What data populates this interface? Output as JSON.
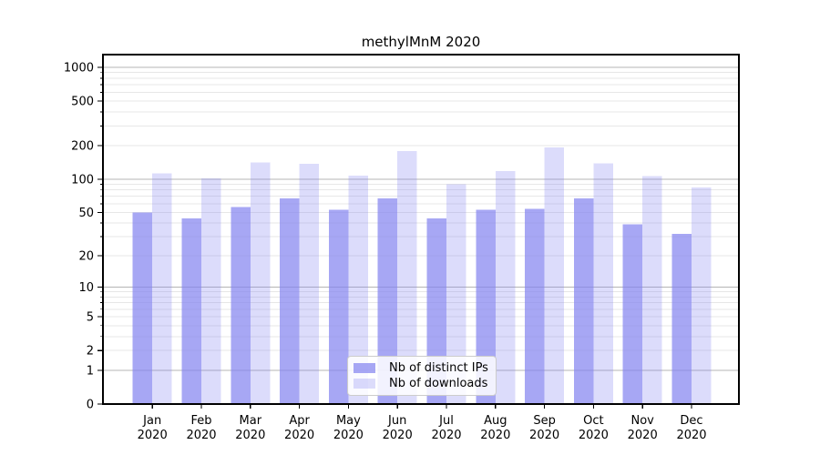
{
  "title": "methylMnM 2020",
  "legend": {
    "items": [
      {
        "label": "Nb of distinct IPs",
        "color": "rgba(130,130,240,0.7)"
      },
      {
        "label": "Nb of downloads",
        "color": "rgba(130,130,240,0.28)"
      }
    ]
  },
  "colors": {
    "bar_base": "#8282f0",
    "grid_major": "#b4b4b4",
    "grid_minor": "#e7e7e7",
    "axis": "#000000",
    "background": "#ffffff"
  },
  "chart_data": {
    "type": "bar",
    "title": "methylMnM 2020",
    "categories": [
      "Jan 2020",
      "Feb 2020",
      "Mar 2020",
      "Apr 2020",
      "May 2020",
      "Jun 2020",
      "Jul 2020",
      "Aug 2020",
      "Sep 2020",
      "Oct 2020",
      "Nov 2020",
      "Dec 2020"
    ],
    "series": [
      {
        "name": "Nb of distinct IPs",
        "values": [
          50,
          44,
          56,
          67,
          53,
          67,
          44,
          53,
          54,
          67,
          39,
          32
        ],
        "color": "rgba(130,130,240,0.7)"
      },
      {
        "name": "Nb of downloads",
        "values": [
          113,
          102,
          141,
          138,
          108,
          179,
          90,
          118,
          193,
          139,
          107,
          84
        ],
        "color": "rgba(130,130,240,0.28)"
      }
    ],
    "xlabel": "",
    "ylabel": "",
    "yscale": "log1p",
    "ylim": [
      0,
      1300
    ],
    "yticks": [
      0,
      1,
      2,
      5,
      10,
      20,
      50,
      100,
      200,
      500,
      1000
    ],
    "grid": "on",
    "legend_position": "lower center"
  }
}
